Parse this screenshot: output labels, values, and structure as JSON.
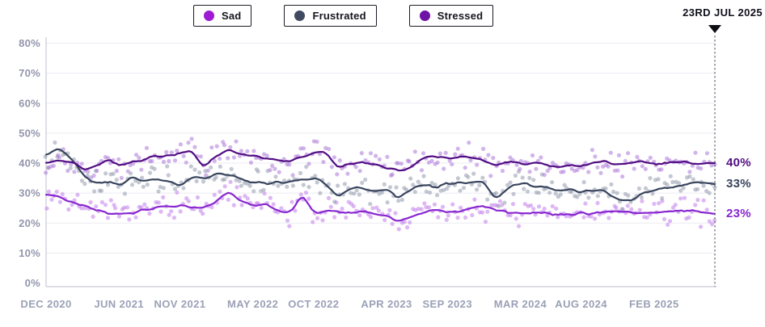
{
  "legend": {
    "items": [
      {
        "label": "Sad",
        "color": "#9e1bd3"
      },
      {
        "label": "Frustrated",
        "color": "#3f4a60"
      },
      {
        "label": "Stressed",
        "color": "#6e13a6"
      }
    ]
  },
  "annotation": {
    "date_label": "23RD JUL 2025"
  },
  "chart_data": {
    "type": "scatter",
    "subtype": "weekly-scatter-with-smoothed-trend-lines",
    "title": "",
    "unit": "%",
    "ylim": [
      0,
      80
    ],
    "grid": "horizontal-faint",
    "legend_position": "top",
    "x_start": "DEC 2020",
    "x_end": "23 JUL 2025",
    "months_span": 55,
    "y_ticks": [
      {
        "label": "0%",
        "value": 0
      },
      {
        "label": "10%",
        "value": 10
      },
      {
        "label": "20%",
        "value": 20
      },
      {
        "label": "30%",
        "value": 30
      },
      {
        "label": "40%",
        "value": 40
      },
      {
        "label": "50%",
        "value": 50
      },
      {
        "label": "60%",
        "value": 60
      },
      {
        "label": "70%",
        "value": 70
      },
      {
        "label": "80%",
        "value": 80
      }
    ],
    "x_ticks": [
      {
        "label": "DEC 2020",
        "month_index": 0
      },
      {
        "label": "JUN 2021",
        "month_index": 6
      },
      {
        "label": "NOV 2021",
        "month_index": 11
      },
      {
        "label": "MAY 2022",
        "month_index": 17
      },
      {
        "label": "OCT 2022",
        "month_index": 22
      },
      {
        "label": "APR 2023",
        "month_index": 28
      },
      {
        "label": "SEP 2023",
        "month_index": 33
      },
      {
        "label": "MAR 2024",
        "month_index": 39
      },
      {
        "label": "AUG 2024",
        "month_index": 44
      },
      {
        "label": "FEB 2025",
        "month_index": 50
      }
    ],
    "series": [
      {
        "name": "Sad",
        "line_color": "#8826cf",
        "dot_color": "#bd77ea",
        "end_label": "23%",
        "end_value": 23,
        "monthly_trend": [
          29.5,
          29,
          27,
          26,
          24.5,
          23.5,
          23,
          23.5,
          24,
          25,
          25.5,
          26,
          25.5,
          25,
          27,
          31,
          27,
          26,
          26,
          24.5,
          23,
          29.5,
          23.5,
          24,
          24,
          23.5,
          24,
          23.5,
          22.5,
          20.5,
          22,
          23.5,
          24.5,
          24,
          23.5,
          25.5,
          25.5,
          24.5,
          23.5,
          23.5,
          23.5,
          23,
          23,
          22.5,
          23.5,
          23.5,
          24,
          23.5,
          24,
          23.5,
          23.5,
          24,
          24.5,
          24,
          23.5,
          23
        ]
      },
      {
        "name": "Frustrated",
        "line_color": "#39455e",
        "dot_color": "#8e96a8",
        "end_label": "33%",
        "end_value": 33,
        "monthly_trend": [
          42.5,
          45,
          42,
          36,
          33.5,
          34,
          32.5,
          35.5,
          34,
          35,
          34,
          32.5,
          35.5,
          35,
          36.5,
          36,
          34.5,
          34,
          33,
          33.5,
          34,
          34.5,
          35,
          33,
          28.5,
          31.5,
          32,
          30.5,
          31.5,
          28.5,
          31.5,
          32.5,
          32,
          33,
          33.5,
          34,
          34,
          27.5,
          32,
          33.5,
          32.5,
          32,
          31,
          31,
          30.5,
          31,
          30.5,
          28,
          27,
          30,
          31,
          31.5,
          32.5,
          33.5,
          33.5,
          33
        ]
      },
      {
        "name": "Stressed",
        "line_color": "#520d84",
        "dot_color": "#a672d6",
        "end_label": "40%",
        "end_value": 40,
        "monthly_trend": [
          40,
          41,
          40.5,
          38,
          38.5,
          41.5,
          39,
          40.5,
          41,
          42.5,
          42.5,
          43.5,
          44.5,
          38.5,
          42.5,
          44.5,
          43,
          42.5,
          41.5,
          40.5,
          40.5,
          42,
          43.5,
          43.5,
          38.5,
          40,
          40.5,
          39.5,
          38.5,
          37.5,
          38.5,
          41.8,
          42.5,
          41.5,
          42,
          42,
          41,
          39,
          40.5,
          40,
          40,
          39.5,
          38.5,
          39,
          39,
          40,
          40.5,
          39.5,
          40,
          40.5,
          40,
          40,
          40.5,
          39.5,
          40,
          40
        ]
      }
    ],
    "colors": {
      "axis_line": "#c9c9d5",
      "gridline": "#ececf3",
      "y_tick_text": "#9395ac",
      "x_tick_text": "#9aa1b6",
      "marker_dashed_line": "#4c4c58",
      "marker_triangle": "#0d0d14"
    }
  }
}
